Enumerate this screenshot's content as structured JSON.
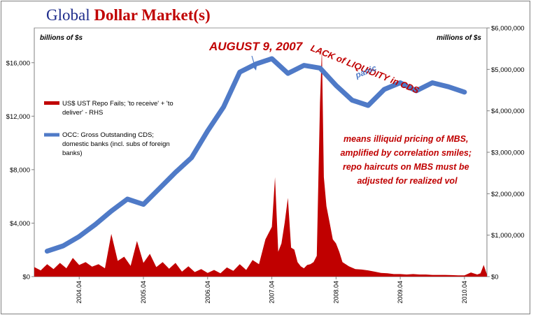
{
  "title": {
    "part1": "Global ",
    "part2": "Dollar Market(s)"
  },
  "colors": {
    "cds_line": "#4f7ac7",
    "repo_area": "#c00000",
    "annotation": "#c00000",
    "title_blue": "#1f2d8c"
  },
  "chart_data": {
    "type": "line",
    "left_axis_label": "billions of $s",
    "right_axis_label": "millions of $s",
    "left_ylim": [
      0,
      18600
    ],
    "right_ylim": [
      0,
      6000000
    ],
    "left_ticks": [
      {
        "v": 0,
        "label": "$0"
      },
      {
        "v": 4000,
        "label": "$4,000"
      },
      {
        "v": 8000,
        "label": "$8,000"
      },
      {
        "v": 12000,
        "label": "$12,000"
      },
      {
        "v": 16000,
        "label": "$16,000"
      }
    ],
    "right_ticks": [
      {
        "v": 0,
        "label": "$0"
      },
      {
        "v": 1000000,
        "label": "$1,000,000"
      },
      {
        "v": 2000000,
        "label": "$2,000,000"
      },
      {
        "v": 3000000,
        "label": "$3,000,000"
      },
      {
        "v": 4000000,
        "label": "$4,000,000"
      },
      {
        "v": 5000000,
        "label": "$5,000,000"
      },
      {
        "v": 6000000,
        "label": "$6,000,000"
      }
    ],
    "xlim": [
      2003.55,
      2010.6
    ],
    "x_ticks": [
      {
        "v": 2004.25,
        "label": "2004.04"
      },
      {
        "v": 2005.25,
        "label": "2005.04"
      },
      {
        "v": 2006.25,
        "label": "2006.04"
      },
      {
        "v": 2007.25,
        "label": "2007.04"
      },
      {
        "v": 2008.25,
        "label": "2008.04"
      },
      {
        "v": 2009.25,
        "label": "2009.04"
      },
      {
        "v": 2010.25,
        "label": "2010.04"
      }
    ],
    "series": [
      {
        "name": "OCC: Gross Outstanding CDS; domestic banks (incl. subs of foreign banks)",
        "axis": "left",
        "type": "line",
        "x": [
          2003.75,
          2004.0,
          2004.25,
          2004.5,
          2004.75,
          2005.0,
          2005.25,
          2005.5,
          2005.75,
          2006.0,
          2006.25,
          2006.5,
          2006.75,
          2007.0,
          2007.25,
          2007.5,
          2007.75,
          2008.0,
          2008.25,
          2008.5,
          2008.75,
          2009.0,
          2009.25,
          2009.5,
          2009.75,
          2010.0,
          2010.25
        ],
        "y": [
          1900,
          2300,
          3000,
          3900,
          4900,
          5800,
          5400,
          6600,
          7800,
          8900,
          10900,
          12700,
          15300,
          15900,
          16300,
          15200,
          15800,
          15600,
          14300,
          13200,
          12800,
          14000,
          14500,
          13900,
          14500,
          14200,
          13800
        ]
      },
      {
        "name": "US$ UST Repo Fails; 'to receive' + 'to deliver' - RHS",
        "axis": "right",
        "type": "area",
        "x": [
          2003.55,
          2003.65,
          2003.75,
          2003.85,
          2003.95,
          2004.05,
          2004.15,
          2004.25,
          2004.35,
          2004.45,
          2004.55,
          2004.65,
          2004.75,
          2004.85,
          2004.95,
          2005.05,
          2005.15,
          2005.25,
          2005.35,
          2005.45,
          2005.55,
          2005.65,
          2005.75,
          2005.85,
          2005.95,
          2006.05,
          2006.15,
          2006.25,
          2006.35,
          2006.45,
          2006.55,
          2006.65,
          2006.75,
          2006.85,
          2006.95,
          2007.05,
          2007.15,
          2007.25,
          2007.3,
          2007.35,
          2007.4,
          2007.45,
          2007.5,
          2007.55,
          2007.6,
          2007.65,
          2007.7,
          2007.75,
          2007.8,
          2007.85,
          2007.9,
          2007.95,
          2008.0,
          2008.03,
          2008.06,
          2008.1,
          2008.15,
          2008.2,
          2008.25,
          2008.3,
          2008.35,
          2008.45,
          2008.55,
          2008.65,
          2008.75,
          2008.85,
          2008.95,
          2009.05,
          2009.15,
          2009.25,
          2009.35,
          2009.45,
          2009.55,
          2009.65,
          2009.75,
          2009.85,
          2009.95,
          2010.05,
          2010.15,
          2010.25,
          2010.35,
          2010.45,
          2010.5,
          2010.55,
          2010.6
        ],
        "y": [
          230000,
          150000,
          300000,
          180000,
          330000,
          200000,
          450000,
          280000,
          350000,
          240000,
          300000,
          200000,
          1030000,
          380000,
          480000,
          260000,
          860000,
          330000,
          550000,
          230000,
          350000,
          190000,
          330000,
          120000,
          250000,
          110000,
          180000,
          90000,
          160000,
          80000,
          220000,
          140000,
          300000,
          160000,
          400000,
          300000,
          900000,
          1200000,
          2400000,
          600000,
          800000,
          1300000,
          1900000,
          700000,
          650000,
          350000,
          250000,
          200000,
          280000,
          300000,
          350000,
          500000,
          4200000,
          5500000,
          2400000,
          1700000,
          1300000,
          900000,
          800000,
          600000,
          350000,
          250000,
          180000,
          170000,
          150000,
          120000,
          90000,
          80000,
          60000,
          60000,
          50000,
          60000,
          50000,
          50000,
          40000,
          40000,
          40000,
          35000,
          30000,
          30000,
          100000,
          50000,
          80000,
          280000,
          50000
        ]
      }
    ],
    "annotations": {
      "date": "AUGUST 9, 2007",
      "liquidity": "LACK of LIQUIDITY in CDS",
      "panic": "panic",
      "note": [
        "means illiquid pricing of MBS,",
        "amplified by correlation smiles;",
        "repo haircuts on MBS must be",
        "adjusted for realized vol"
      ]
    },
    "legend": {
      "placement": "left",
      "repo_lines": [
        "US$ UST Repo Fails; 'to receive' + 'to",
        "deliver' - RHS"
      ],
      "cds_lines": [
        "OCC: Gross Outstanding CDS;",
        "domestic banks (incl. subs of foreign",
        "banks)"
      ]
    },
    "grid": false
  }
}
